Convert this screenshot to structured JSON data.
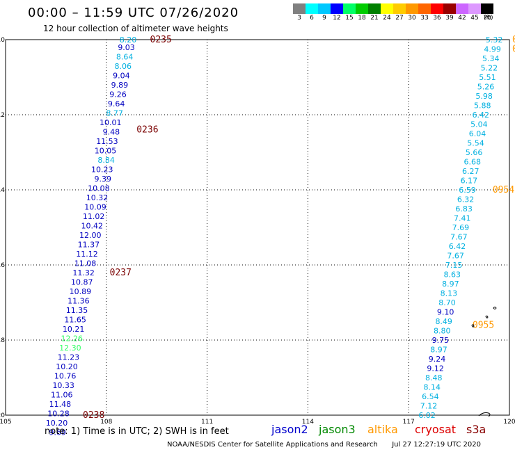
{
  "header": {
    "title": "00:00 – 11:59 UTC 07/26/2020",
    "subtitle": "12 hour collection of altimeter wave heights"
  },
  "color_scale": {
    "labels": [
      "3",
      "6",
      "9",
      "12",
      "15",
      "18",
      "21",
      "24",
      "27",
      "30",
      "33",
      "36",
      "39",
      "42",
      "45",
      "70"
    ],
    "unit": "(ft)",
    "colors": [
      "#808080",
      "#00ffff",
      "#00c8ff",
      "#0000ff",
      "#00ff66",
      "#00cc00",
      "#008000",
      "#ffff00",
      "#ffcc00",
      "#ff9900",
      "#ff6600",
      "#ff0000",
      "#990000",
      "#cc66ff",
      "#dd99ff",
      "#000000"
    ]
  },
  "axes": {
    "x_ticks": [
      "105",
      "108",
      "111",
      "114",
      "117",
      "120"
    ],
    "y_ticks": [
      "-10",
      "-12",
      "-14",
      "-16",
      "-18",
      "-20"
    ]
  },
  "chart_data": {
    "type": "scatter",
    "xlim": [
      105,
      120
    ],
    "ylim": [
      -20,
      -10
    ],
    "grid": true,
    "tracks": [
      {
        "satellite": "jason2",
        "points": [
          {
            "lon": 108.9,
            "lat": -10.0,
            "v": "8.20",
            "c": "#00b0e0"
          },
          {
            "lon": 108.85,
            "lat": -10.2,
            "v": "9.03",
            "c": "#0000c0"
          },
          {
            "lon": 108.8,
            "lat": -10.45,
            "v": "8.64",
            "c": "#00b0e0"
          },
          {
            "lon": 108.75,
            "lat": -10.7,
            "v": "8.06",
            "c": "#00b0e0"
          },
          {
            "lon": 108.7,
            "lat": -10.95,
            "v": "9.04",
            "c": "#0000c0"
          },
          {
            "lon": 108.65,
            "lat": -11.2,
            "v": "9.89",
            "c": "#0000c0"
          },
          {
            "lon": 108.6,
            "lat": -11.45,
            "v": "9.26",
            "c": "#0000c0"
          },
          {
            "lon": 108.55,
            "lat": -11.7,
            "v": "9.64",
            "c": "#0000c0"
          },
          {
            "lon": 108.5,
            "lat": -11.95,
            "v": "8.77",
            "c": "#00b0e0"
          },
          {
            "lon": 108.45,
            "lat": -12.2,
            "v": "10.01",
            "c": "#0000c0"
          },
          {
            "lon": 108.4,
            "lat": -12.45,
            "v": "9.48",
            "c": "#0000c0"
          },
          {
            "lon": 108.35,
            "lat": -12.7,
            "v": "11.53",
            "c": "#0000c0"
          },
          {
            "lon": 108.3,
            "lat": -12.95,
            "v": "10.05",
            "c": "#0000c0"
          },
          {
            "lon": 108.25,
            "lat": -13.2,
            "v": "8.84",
            "c": "#00b0e0"
          },
          {
            "lon": 108.2,
            "lat": -13.45,
            "v": "10.23",
            "c": "#0000c0"
          },
          {
            "lon": 108.15,
            "lat": -13.7,
            "v": "9.39",
            "c": "#0000c0"
          },
          {
            "lon": 108.1,
            "lat": -13.95,
            "v": "10.08",
            "c": "#0000c0"
          },
          {
            "lon": 108.05,
            "lat": -14.2,
            "v": "10.32",
            "c": "#0000c0"
          },
          {
            "lon": 108.0,
            "lat": -14.45,
            "v": "10.09",
            "c": "#0000c0"
          },
          {
            "lon": 107.95,
            "lat": -14.7,
            "v": "11.02",
            "c": "#0000c0"
          },
          {
            "lon": 107.9,
            "lat": -14.95,
            "v": "10.42",
            "c": "#0000c0"
          },
          {
            "lon": 107.85,
            "lat": -15.2,
            "v": "12.00",
            "c": "#0000c0"
          },
          {
            "lon": 107.8,
            "lat": -15.45,
            "v": "11.37",
            "c": "#0000c0"
          },
          {
            "lon": 107.75,
            "lat": -15.7,
            "v": "11.12",
            "c": "#0000c0"
          },
          {
            "lon": 107.7,
            "lat": -15.95,
            "v": "11.08",
            "c": "#0000c0"
          },
          {
            "lon": 107.65,
            "lat": -16.2,
            "v": "11.32",
            "c": "#0000c0"
          },
          {
            "lon": 107.6,
            "lat": -16.45,
            "v": "10.87",
            "c": "#0000c0"
          },
          {
            "lon": 107.55,
            "lat": -16.7,
            "v": "10.89",
            "c": "#0000c0"
          },
          {
            "lon": 107.5,
            "lat": -16.95,
            "v": "11.36",
            "c": "#0000c0"
          },
          {
            "lon": 107.45,
            "lat": -17.2,
            "v": "11.35",
            "c": "#0000c0"
          },
          {
            "lon": 107.4,
            "lat": -17.45,
            "v": "11.65",
            "c": "#0000c0"
          },
          {
            "lon": 107.35,
            "lat": -17.7,
            "v": "10.21",
            "c": "#0000c0"
          },
          {
            "lon": 107.3,
            "lat": -17.95,
            "v": "12.26",
            "c": "#33ff66"
          },
          {
            "lon": 107.25,
            "lat": -18.2,
            "v": "12.30",
            "c": "#33ff66"
          },
          {
            "lon": 107.2,
            "lat": -18.45,
            "v": "11.23",
            "c": "#0000c0"
          },
          {
            "lon": 107.15,
            "lat": -18.7,
            "v": "10.20",
            "c": "#0000c0"
          },
          {
            "lon": 107.1,
            "lat": -18.95,
            "v": "10.76",
            "c": "#0000c0"
          },
          {
            "lon": 107.05,
            "lat": -19.2,
            "v": "10.33",
            "c": "#0000c0"
          },
          {
            "lon": 107.0,
            "lat": -19.45,
            "v": "11.06",
            "c": "#0000c0"
          },
          {
            "lon": 106.95,
            "lat": -19.7,
            "v": "11.48",
            "c": "#0000c0"
          },
          {
            "lon": 106.9,
            "lat": -19.95,
            "v": "10.28",
            "c": "#0000c0"
          },
          {
            "lon": 106.85,
            "lat": -20.2,
            "v": "10.20",
            "c": "#0000c0"
          },
          {
            "lon": 106.8,
            "lat": -20.45,
            "v": "9.69",
            "c": "#0000c0"
          }
        ],
        "times": [
          {
            "lon": 109.3,
            "lat": -10.0,
            "t": "0235"
          },
          {
            "lon": 108.9,
            "lat": -12.4,
            "t": "0236"
          },
          {
            "lon": 108.1,
            "lat": -16.2,
            "t": "0237"
          },
          {
            "lon": 107.3,
            "lat": -20.0,
            "t": "0238"
          }
        ]
      },
      {
        "satellite": "jason2",
        "points": [
          {
            "lon": 119.8,
            "lat": -10.0,
            "v": "5.32",
            "c": "#00b0e0"
          },
          {
            "lon": 119.75,
            "lat": -10.25,
            "v": "4.99",
            "c": "#00b0e0"
          },
          {
            "lon": 119.7,
            "lat": -10.5,
            "v": "5.34",
            "c": "#00b0e0"
          },
          {
            "lon": 119.65,
            "lat": -10.75,
            "v": "5.22",
            "c": "#00b0e0"
          },
          {
            "lon": 119.6,
            "lat": -11.0,
            "v": "5.51",
            "c": "#00b0e0"
          },
          {
            "lon": 119.55,
            "lat": -11.25,
            "v": "5.26",
            "c": "#00b0e0"
          },
          {
            "lon": 119.5,
            "lat": -11.5,
            "v": "5.98",
            "c": "#00b0e0"
          },
          {
            "lon": 119.45,
            "lat": -11.75,
            "v": "5.88",
            "c": "#00b0e0"
          },
          {
            "lon": 119.4,
            "lat": -12.0,
            "v": "6.42",
            "c": "#00b0e0"
          },
          {
            "lon": 119.35,
            "lat": -12.25,
            "v": "5.04",
            "c": "#00b0e0"
          },
          {
            "lon": 119.3,
            "lat": -12.5,
            "v": "6.04",
            "c": "#00b0e0"
          },
          {
            "lon": 119.25,
            "lat": -12.75,
            "v": "5.54",
            "c": "#00b0e0"
          },
          {
            "lon": 119.2,
            "lat": -13.0,
            "v": "5.66",
            "c": "#00b0e0"
          },
          {
            "lon": 119.15,
            "lat": -13.25,
            "v": "6.68",
            "c": "#00b0e0"
          },
          {
            "lon": 119.1,
            "lat": -13.5,
            "v": "6.27",
            "c": "#00b0e0"
          },
          {
            "lon": 119.05,
            "lat": -13.75,
            "v": "6.17",
            "c": "#00b0e0"
          },
          {
            "lon": 119.0,
            "lat": -14.0,
            "v": "6.59",
            "c": "#00b0e0"
          },
          {
            "lon": 118.95,
            "lat": -14.25,
            "v": "6.32",
            "c": "#00b0e0"
          },
          {
            "lon": 118.9,
            "lat": -14.5,
            "v": "6.83",
            "c": "#00b0e0"
          },
          {
            "lon": 118.85,
            "lat": -14.75,
            "v": "7.41",
            "c": "#00b0e0"
          },
          {
            "lon": 118.8,
            "lat": -15.0,
            "v": "7.69",
            "c": "#00b0e0"
          },
          {
            "lon": 118.75,
            "lat": -15.25,
            "v": "7.67",
            "c": "#00b0e0"
          },
          {
            "lon": 118.7,
            "lat": -15.5,
            "v": "6.42",
            "c": "#00b0e0"
          },
          {
            "lon": 118.65,
            "lat": -15.75,
            "v": "7.67",
            "c": "#00b0e0"
          },
          {
            "lon": 118.6,
            "lat": -16.0,
            "v": "7.15",
            "c": "#00b0e0"
          },
          {
            "lon": 118.55,
            "lat": -16.25,
            "v": "8.63",
            "c": "#00b0e0"
          },
          {
            "lon": 118.5,
            "lat": -16.5,
            "v": "8.97",
            "c": "#00b0e0"
          },
          {
            "lon": 118.45,
            "lat": -16.75,
            "v": "8.13",
            "c": "#00b0e0"
          },
          {
            "lon": 118.4,
            "lat": -17.0,
            "v": "8.70",
            "c": "#00b0e0"
          },
          {
            "lon": 118.35,
            "lat": -17.25,
            "v": "9.10",
            "c": "#0000c0"
          },
          {
            "lon": 118.3,
            "lat": -17.5,
            "v": "8.49",
            "c": "#00b0e0"
          },
          {
            "lon": 118.25,
            "lat": -17.75,
            "v": "8.80",
            "c": "#00b0e0"
          },
          {
            "lon": 118.2,
            "lat": -18.0,
            "v": "9.75",
            "c": "#0000c0"
          },
          {
            "lon": 118.15,
            "lat": -18.25,
            "v": "8.97",
            "c": "#00b0e0"
          },
          {
            "lon": 118.1,
            "lat": -18.5,
            "v": "9.24",
            "c": "#0000c0"
          },
          {
            "lon": 118.05,
            "lat": -18.75,
            "v": "9.12",
            "c": "#0000c0"
          },
          {
            "lon": 118.0,
            "lat": -19.0,
            "v": "8.48",
            "c": "#00b0e0"
          },
          {
            "lon": 117.95,
            "lat": -19.25,
            "v": "8.14",
            "c": "#00b0e0"
          },
          {
            "lon": 117.9,
            "lat": -19.5,
            "v": "6.54",
            "c": "#00b0e0"
          },
          {
            "lon": 117.85,
            "lat": -19.75,
            "v": "7.12",
            "c": "#00b0e0"
          },
          {
            "lon": 117.8,
            "lat": -20.0,
            "v": "6.02",
            "c": "#00b0e0"
          }
        ],
        "times": [
          {
            "lon": 120.1,
            "lat": -10.0,
            "t": "09"
          },
          {
            "lon": 120.1,
            "lat": -10.25,
            "t": "09"
          },
          {
            "lon": 119.5,
            "lat": -14.0,
            "t": "0954"
          },
          {
            "lon": 118.9,
            "lat": -17.6,
            "t": "0955"
          }
        ]
      }
    ]
  },
  "footer": {
    "note": "note: 1) Time is in UTC; 2) SWH is in feet",
    "legend": [
      {
        "name": "jason2",
        "color": "#0000cc"
      },
      {
        "name": "jason3",
        "color": "#008800"
      },
      {
        "name": "altika",
        "color": "#ff9900"
      },
      {
        "name": "cryosat",
        "color": "#dd0000"
      },
      {
        "name": "s3a",
        "color": "#880000"
      }
    ],
    "credit": "NOAA/NESDIS Center for Satellite Applications and Research",
    "timestamp": "Jul 27 12:27:19 UTC 2020"
  }
}
